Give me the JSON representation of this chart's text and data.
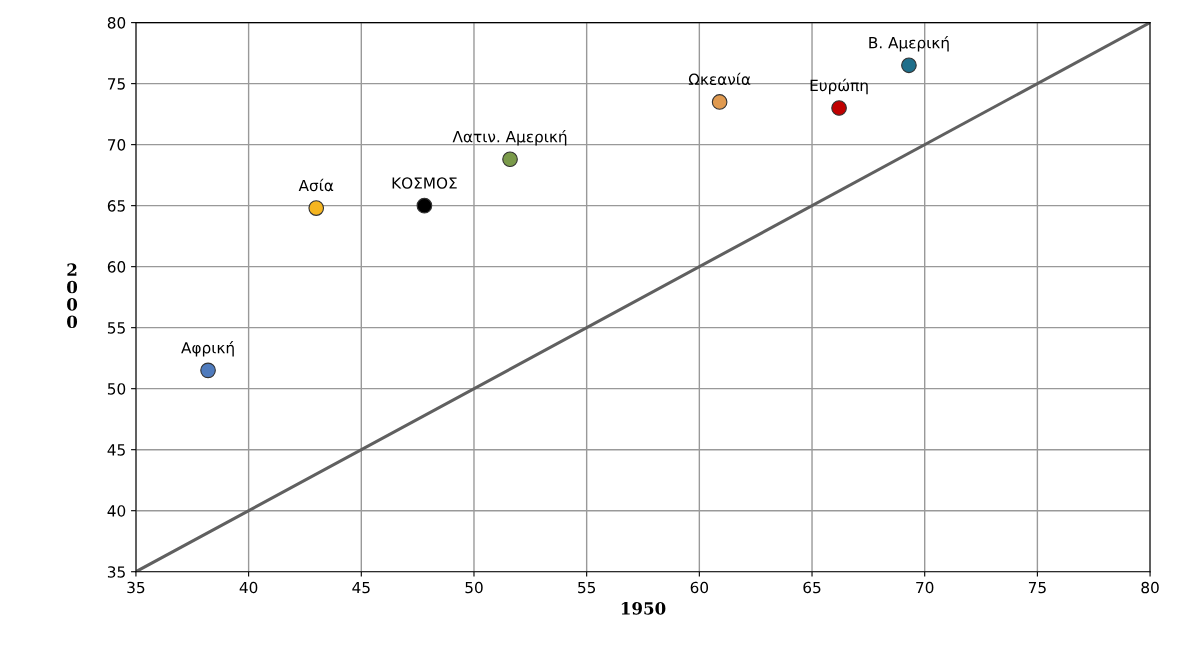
{
  "chart_data": {
    "type": "scatter",
    "xlabel": "1950",
    "ylabel": "2000",
    "xlim": [
      35,
      80
    ],
    "xticks": [
      35,
      40,
      45,
      50,
      55,
      60,
      65,
      70,
      75,
      80
    ],
    "ylim": [
      35,
      80
    ],
    "yticks": [
      35,
      40,
      45,
      50,
      55,
      60,
      65,
      70,
      75,
      80
    ],
    "grid": true,
    "marker": "circle",
    "series": [
      {
        "name": "Αφρική",
        "color": "#4f7bbd",
        "x": [
          38.2
        ],
        "values": [
          51.5
        ]
      },
      {
        "name": "Ασία",
        "color": "#f5b520",
        "x": [
          43.0
        ],
        "values": [
          64.8
        ]
      },
      {
        "name": "ΚΟΣΜΟΣ",
        "color": "#000000",
        "x": [
          47.8
        ],
        "values": [
          65.0
        ]
      },
      {
        "name": "Λατιν. Αμερική",
        "color": "#7a9a4a",
        "x": [
          51.6
        ],
        "values": [
          68.8
        ]
      },
      {
        "name": "Ωκεανία",
        "color": "#e09a50",
        "x": [
          60.9
        ],
        "values": [
          73.5
        ]
      },
      {
        "name": "Ευρώπη",
        "color": "#c00000",
        "x": [
          66.2
        ],
        "values": [
          73.0
        ]
      },
      {
        "name": "Β. Αμερική",
        "color": "#1f6f8b",
        "x": [
          69.3
        ],
        "values": [
          76.5
        ]
      },
      {
        "type": "line",
        "marker": "none",
        "color": "#606060",
        "x": [
          35,
          80
        ],
        "values": [
          35,
          80
        ]
      }
    ]
  }
}
